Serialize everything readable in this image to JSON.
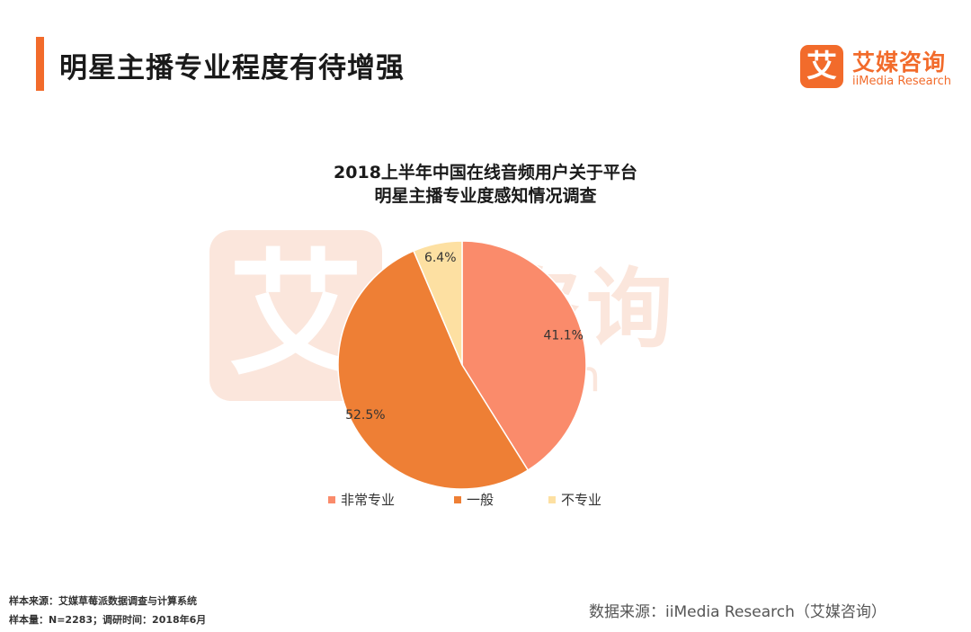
{
  "header": {
    "title": "明星主播专业程度有待增强",
    "brand_cn": "艾媒咨询",
    "brand_en": "iiMedia Research",
    "brand_mark": "艾",
    "accent_color": "#f26b2b"
  },
  "watermark": {
    "mark": "艾",
    "cn": "媒咨询",
    "en": "Research"
  },
  "chart_data": {
    "type": "pie",
    "title_line1": "2018上半年中国在线音频用户关于平台",
    "title_line2": "明星主播专业度感知情况调查",
    "categories": [
      "非常专业",
      "一般",
      "不专业"
    ],
    "values": [
      41.1,
      52.5,
      6.4
    ],
    "labels": [
      "41.1%",
      "52.5%",
      "6.4%"
    ],
    "colors": [
      "#fa8b6b",
      "#ee7f35",
      "#fde0a2"
    ],
    "start_angle_deg": 0,
    "direction": "clockwise",
    "legend_position": "bottom"
  },
  "footer": {
    "sample_source": "样本来源：艾媒草莓派数据调查与计算系统",
    "sample_size": "样本量：N=2283；调研时间：2018年6月",
    "data_source": "数据来源：iiMedia Research（艾媒咨询）"
  }
}
